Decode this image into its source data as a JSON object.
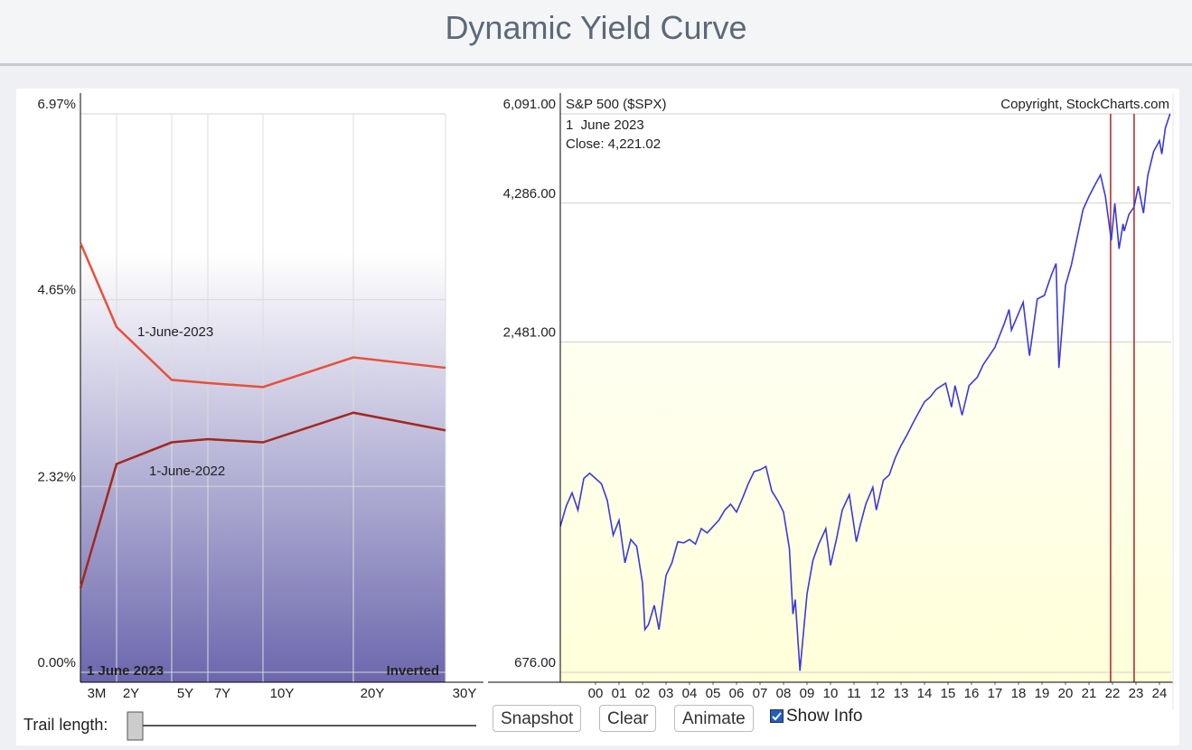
{
  "header": {
    "title": "Dynamic Yield Curve"
  },
  "chart_data": [
    {
      "type": "line",
      "categories": [
        "3M",
        "2Y",
        "5Y",
        "7Y",
        "10Y",
        "20Y",
        "30Y"
      ],
      "series": [
        {
          "name": "1-June-2023",
          "color": "#e8503a",
          "values": [
            5.36,
            4.31,
            3.65,
            3.61,
            3.56,
            3.93,
            3.8
          ]
        },
        {
          "name": "1-June-2022",
          "color": "#a3281e",
          "values": [
            1.05,
            2.6,
            2.87,
            2.91,
            2.87,
            3.24,
            3.02
          ]
        }
      ],
      "ylim": [
        0,
        6.97
      ],
      "yticks": [
        {
          "value": 0,
          "label": "0.00%"
        },
        {
          "value": 2.32,
          "label": "2.32%"
        },
        {
          "value": 4.65,
          "label": "4.65%"
        },
        {
          "value": 6.97,
          "label": "6.97%"
        }
      ],
      "grid": true,
      "annotations": [
        "1 June 2023",
        "Inverted"
      ]
    },
    {
      "type": "line",
      "log_scale": true,
      "subtitle": "1  June 2023",
      "annotation": "Close: 4,221.02",
      "source": "Copyright, StockCharts.com",
      "x": [
        -1.0,
        -0.75,
        -0.5,
        -0.25,
        0.0,
        0.25,
        0.5,
        0.75,
        1.0,
        1.25,
        1.5,
        1.75,
        2.0,
        2.25,
        2.5,
        2.6,
        2.75,
        3.0,
        3.2,
        3.5,
        3.75,
        4.0,
        4.25,
        4.5,
        4.75,
        5.0,
        5.25,
        5.5,
        5.75,
        6.0,
        6.25,
        6.5,
        6.75,
        7.0,
        7.25,
        7.5,
        7.75,
        8.0,
        8.25,
        8.5,
        8.75,
        8.9,
        9.0,
        9.2,
        9.5,
        9.75,
        10.0,
        10.3,
        10.5,
        10.75,
        11.0,
        11.3,
        11.6,
        11.75,
        12.0,
        12.3,
        12.45,
        12.75,
        13.0,
        13.25,
        13.5,
        13.75,
        14.0,
        14.25,
        14.5,
        14.75,
        15.0,
        15.4,
        15.65,
        15.8,
        16.1,
        16.4,
        16.75,
        17.0,
        17.5,
        17.9,
        18.1,
        18.2,
        18.7,
        18.97,
        19.3,
        19.6,
        19.9,
        20.1,
        20.22,
        20.5,
        20.75,
        21.0,
        21.25,
        21.5,
        21.75,
        21.99,
        22.2,
        22.45,
        22.6,
        22.78,
        22.95,
        23.0,
        23.2,
        23.42,
        23.6,
        23.82,
        24.0,
        24.25,
        24.5,
        24.6,
        24.75,
        24.95
      ],
      "series": [
        {
          "name": "S&P 500 ($SPX)",
          "color": "#3a3ad8",
          "values": [
            1200,
            1300,
            1370,
            1280,
            1450,
            1480,
            1450,
            1420,
            1330,
            1160,
            1230,
            1040,
            1140,
            1110,
            960,
            800,
            815,
            880,
            800,
            990,
            1040,
            1130,
            1125,
            1140,
            1120,
            1190,
            1170,
            1200,
            1230,
            1280,
            1310,
            1270,
            1340,
            1420,
            1490,
            1500,
            1520,
            1380,
            1330,
            1270,
            1100,
            850,
            900,
            680,
            920,
            1050,
            1120,
            1190,
            1030,
            1140,
            1280,
            1360,
            1130,
            1200,
            1310,
            1400,
            1280,
            1440,
            1470,
            1570,
            1650,
            1720,
            1800,
            1880,
            1960,
            2000,
            2060,
            2110,
            1920,
            2090,
            1860,
            2090,
            2160,
            2270,
            2430,
            2670,
            2820,
            2600,
            2900,
            2350,
            2940,
            2980,
            3230,
            3380,
            2240,
            3100,
            3360,
            3750,
            4180,
            4400,
            4600,
            4790,
            4400,
            3700,
            4280,
            3580,
            3950,
            3840,
            4100,
            4221,
            4580,
            4120,
            4770,
            5250,
            5480,
            5200,
            5760,
            6091
          ]
        }
      ],
      "xlim": [
        -1,
        25
      ],
      "xticks": [
        {
          "value": 0.5,
          "label": "00"
        },
        {
          "value": 1.5,
          "label": "01"
        },
        {
          "value": 2.5,
          "label": "02"
        },
        {
          "value": 3.5,
          "label": "03"
        },
        {
          "value": 4.5,
          "label": "04"
        },
        {
          "value": 5.5,
          "label": "05"
        },
        {
          "value": 6.5,
          "label": "06"
        },
        {
          "value": 7.5,
          "label": "07"
        },
        {
          "value": 8.5,
          "label": "08"
        },
        {
          "value": 9.5,
          "label": "09"
        },
        {
          "value": 10.5,
          "label": "10"
        },
        {
          "value": 11.5,
          "label": "11"
        },
        {
          "value": 12.5,
          "label": "12"
        },
        {
          "value": 13.5,
          "label": "13"
        },
        {
          "value": 14.5,
          "label": "14"
        },
        {
          "value": 15.5,
          "label": "15"
        },
        {
          "value": 16.5,
          "label": "16"
        },
        {
          "value": 17.5,
          "label": "17"
        },
        {
          "value": 18.5,
          "label": "18"
        },
        {
          "value": 19.5,
          "label": "19"
        },
        {
          "value": 20.5,
          "label": "20"
        },
        {
          "value": 21.5,
          "label": "21"
        },
        {
          "value": 22.5,
          "label": "22"
        },
        {
          "value": 23.5,
          "label": "23"
        },
        {
          "value": 24.5,
          "label": "24"
        }
      ],
      "ylim": [
        676,
        6091
      ],
      "yticks": [
        {
          "value": 676,
          "label": "676.00"
        },
        {
          "value": 2481,
          "label": "2,481.00"
        },
        {
          "value": 4286,
          "label": "4,286.00"
        },
        {
          "value": 6091,
          "label": "6,091.00"
        }
      ],
      "grid": true,
      "highlight_x": [
        22.42,
        23.42
      ],
      "highlight_color": "#b22222"
    }
  ],
  "controls": {
    "trail_label": "Trail length:",
    "buttons": [
      "Snapshot",
      "Clear",
      "Animate"
    ],
    "checkbox": "Show Info",
    "checked": true
  }
}
